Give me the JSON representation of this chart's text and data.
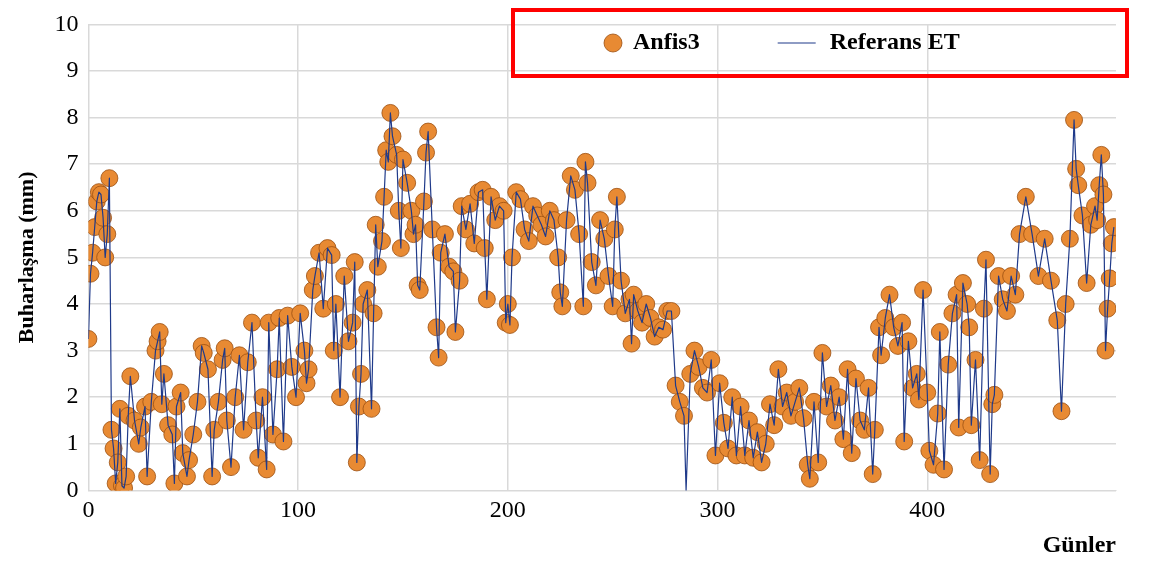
{
  "chart_data": {
    "type": "scatter",
    "ylabel": "Buharlaşma (mm)",
    "xlabel": "Günler",
    "x": [
      0,
      1,
      2,
      3,
      4,
      5,
      6,
      7,
      8,
      9,
      10,
      11,
      12,
      13,
      14,
      15,
      16,
      17,
      18,
      19,
      20,
      22,
      24,
      25,
      27,
      28,
      30,
      32,
      33,
      34,
      35,
      36,
      38,
      40,
      41,
      42,
      44,
      45,
      47,
      48,
      50,
      52,
      54,
      55,
      57,
      59,
      60,
      62,
      64,
      65,
      66,
      68,
      70,
      72,
      74,
      76,
      78,
      80,
      81,
      83,
      85,
      86,
      88,
      90,
      91,
      93,
      95,
      97,
      99,
      101,
      103,
      104,
      105,
      107,
      108,
      110,
      112,
      114,
      116,
      117,
      118,
      120,
      122,
      124,
      126,
      127,
      128,
      129,
      130,
      131,
      133,
      135,
      136,
      137,
      138,
      140,
      141,
      142,
      143,
      144,
      145,
      147,
      148,
      149,
      150,
      152,
      154,
      155,
      156,
      157,
      158,
      160,
      161,
      162,
      164,
      166,
      167,
      168,
      170,
      172,
      174,
      175,
      177,
      178,
      180,
      182,
      184,
      186,
      188,
      189,
      190,
      192,
      194,
      196,
      198,
      199,
      200,
      201,
      202,
      204,
      206,
      208,
      210,
      212,
      214,
      216,
      218,
      220,
      222,
      224,
      225,
      226,
      228,
      230,
      232,
      234,
      236,
      237,
      238,
      240,
      242,
      244,
      246,
      248,
      250,
      251,
      252,
      254,
      256,
      258,
      259,
      260,
      262,
      264,
      266,
      268,
      270,
      272,
      274,
      276,
      278,
      280,
      282,
      284,
      285,
      287,
      289,
      291,
      293,
      295,
      297,
      299,
      301,
      303,
      305,
      307,
      309,
      311,
      313,
      315,
      317,
      319,
      321,
      323,
      325,
      327,
      329,
      331,
      333,
      335,
      337,
      339,
      341,
      343,
      344,
      346,
      348,
      350,
      352,
      354,
      356,
      358,
      360,
      362,
      364,
      366,
      368,
      370,
      372,
      374,
      375,
      377,
      378,
      380,
      382,
      384,
      386,
      388,
      389,
      391,
      393,
      395,
      396,
      398,
      400,
      401,
      403,
      405,
      406,
      408,
      410,
      412,
      414,
      415,
      417,
      419,
      420,
      421,
      423,
      425,
      427,
      428,
      430,
      431,
      432,
      434,
      436,
      438,
      440,
      442,
      444,
      447,
      450,
      453,
      456,
      459,
      462,
      464,
      466,
      468,
      470,
      471,
      472,
      474,
      476,
      478,
      480,
      481,
      482,
      483,
      484,
      485,
      486,
      487,
      488,
      489
    ],
    "series": [
      {
        "name": "Anfis3",
        "marker": "circle",
        "color": "#e88a33",
        "values": [
          3.25,
          4.65,
          5.1,
          5.65,
          6.2,
          6.4,
          6.35,
          5.85,
          5.0,
          5.5,
          6.7,
          1.3,
          0.9,
          0.15,
          0.6,
          1.75,
          0.1,
          0.05,
          0.3,
          1.6,
          2.45,
          1.5,
          1.0,
          1.35,
          1.8,
          0.3,
          1.9,
          3.0,
          3.2,
          3.4,
          1.85,
          2.5,
          1.4,
          1.2,
          0.15,
          1.8,
          2.1,
          0.8,
          0.3,
          0.65,
          1.2,
          1.9,
          3.1,
          2.95,
          2.6,
          0.3,
          1.3,
          1.9,
          2.8,
          3.05,
          1.5,
          0.5,
          2.0,
          2.9,
          1.3,
          2.75,
          3.6,
          1.5,
          0.7,
          2.0,
          0.45,
          3.6,
          1.2,
          2.6,
          3.7,
          1.05,
          3.75,
          2.65,
          2.0,
          3.8,
          3.0,
          2.3,
          2.6,
          4.3,
          4.6,
          5.1,
          3.9,
          5.2,
          5.05,
          3.0,
          4.0,
          2.0,
          4.6,
          3.2,
          3.6,
          4.9,
          0.6,
          1.8,
          2.5,
          4.0,
          4.3,
          1.75,
          3.8,
          5.7,
          4.8,
          5.35,
          6.3,
          7.3,
          7.05,
          8.1,
          7.6,
          7.2,
          6.0,
          5.2,
          7.1,
          6.6,
          6.0,
          5.5,
          5.7,
          4.4,
          4.3,
          6.2,
          7.25,
          7.7,
          5.6,
          3.5,
          2.85,
          5.1,
          5.5,
          4.8,
          4.7,
          3.4,
          4.5,
          6.1,
          5.6,
          6.15,
          5.3,
          6.4,
          6.45,
          5.2,
          4.1,
          6.3,
          5.8,
          6.1,
          6.0,
          3.6,
          4.0,
          3.55,
          5.0,
          6.4,
          6.25,
          5.6,
          5.35,
          6.1,
          5.9,
          5.7,
          5.45,
          6.0,
          5.8,
          5.0,
          4.25,
          3.95,
          5.8,
          6.75,
          6.45,
          5.5,
          3.95,
          7.05,
          6.6,
          4.9,
          4.4,
          5.8,
          5.4,
          4.6,
          3.95,
          5.6,
          6.3,
          4.5,
          3.8,
          4.1,
          3.15,
          4.2,
          3.85,
          3.6,
          4.0,
          3.7,
          3.3,
          3.5,
          3.45,
          3.85,
          3.85,
          2.25,
          1.9,
          1.6,
          null,
          2.5,
          3.0,
          2.65,
          2.2,
          2.1,
          2.8,
          0.75,
          2.3,
          1.45,
          0.9,
          2.0,
          0.75,
          1.8,
          0.75,
          1.5,
          0.7,
          1.25,
          0.6,
          1.0,
          1.85,
          1.4,
          2.6,
          1.8,
          2.1,
          1.6,
          1.9,
          2.2,
          1.55,
          0.55,
          0.25,
          1.9,
          0.6,
          2.95,
          1.8,
          2.25,
          1.5,
          2.0,
          1.1,
          2.6,
          0.8,
          2.4,
          1.5,
          1.3,
          2.2,
          0.35,
          1.3,
          3.5,
          2.9,
          3.7,
          4.2,
          3.5,
          3.1,
          3.6,
          1.05,
          3.2,
          2.2,
          2.5,
          1.95,
          4.3,
          2.1,
          0.85,
          0.55,
          1.65,
          3.4,
          0.45,
          2.7,
          3.8,
          4.2,
          1.35,
          4.45,
          4.0,
          3.5,
          1.4,
          2.8,
          0.65,
          3.9,
          4.95,
          0.35,
          1.85,
          2.05,
          4.6,
          4.1,
          3.85,
          4.6,
          4.2,
          5.5,
          6.3,
          5.5,
          4.6,
          5.4,
          4.5,
          3.65,
          1.7,
          4.0,
          5.4,
          7.95,
          6.9,
          6.55,
          5.9,
          4.45,
          5.7,
          6.1,
          5.8,
          6.55,
          7.2,
          6.35,
          3.0,
          3.9,
          4.55,
          5.3,
          5.65
        ]
      },
      {
        "name": "Referans ET",
        "type": "line",
        "marker": "none",
        "color": "#1f3a8a",
        "values": [
          3.25,
          4.65,
          5.1,
          5.65,
          6.2,
          6.4,
          6.35,
          5.85,
          5.0,
          5.5,
          6.7,
          1.3,
          0.9,
          0.15,
          0.6,
          1.75,
          0.1,
          0.05,
          0.3,
          1.6,
          2.45,
          1.5,
          1.0,
          1.35,
          1.8,
          0.3,
          1.9,
          3.0,
          3.2,
          3.4,
          1.85,
          2.5,
          1.4,
          1.2,
          0.15,
          1.8,
          2.1,
          0.8,
          0.3,
          0.65,
          1.2,
          1.9,
          3.1,
          2.95,
          2.6,
          0.3,
          1.3,
          1.9,
          2.8,
          3.05,
          1.5,
          0.5,
          2.0,
          2.9,
          1.3,
          2.75,
          3.6,
          1.5,
          0.7,
          2.0,
          0.45,
          3.6,
          1.2,
          2.6,
          3.7,
          1.05,
          3.75,
          2.65,
          2.0,
          3.8,
          3.0,
          2.3,
          2.6,
          4.3,
          4.6,
          5.1,
          3.9,
          5.2,
          5.05,
          3.0,
          4.0,
          2.0,
          4.6,
          3.2,
          3.6,
          4.9,
          0.6,
          1.8,
          2.5,
          4.0,
          4.3,
          1.75,
          3.8,
          5.7,
          4.8,
          5.35,
          6.3,
          7.3,
          7.05,
          8.1,
          7.6,
          7.2,
          6.0,
          5.2,
          7.1,
          6.6,
          6.0,
          5.5,
          5.7,
          4.4,
          4.3,
          6.2,
          7.25,
          7.7,
          5.6,
          3.5,
          2.85,
          5.1,
          5.5,
          4.8,
          4.7,
          3.4,
          4.5,
          6.1,
          5.6,
          6.15,
          5.3,
          6.4,
          6.45,
          5.2,
          4.1,
          6.3,
          5.8,
          6.1,
          6.0,
          3.6,
          4.0,
          3.55,
          5.0,
          6.4,
          6.25,
          5.6,
          5.35,
          6.1,
          5.9,
          5.7,
          5.45,
          6.0,
          5.8,
          5.0,
          4.25,
          3.95,
          5.8,
          6.75,
          6.45,
          5.5,
          3.95,
          7.05,
          6.6,
          4.9,
          4.4,
          5.8,
          5.4,
          4.6,
          3.95,
          5.6,
          6.3,
          4.5,
          3.8,
          4.1,
          3.15,
          4.2,
          3.85,
          3.6,
          4.0,
          3.7,
          3.3,
          3.5,
          3.45,
          3.85,
          3.85,
          2.25,
          1.9,
          1.6,
          0,
          2.5,
          3.0,
          2.65,
          2.2,
          2.1,
          2.8,
          0.75,
          2.3,
          1.45,
          0.9,
          2.0,
          0.75,
          1.8,
          0.75,
          1.5,
          0.7,
          1.25,
          0.6,
          1.0,
          1.85,
          1.4,
          2.6,
          1.8,
          2.1,
          1.6,
          1.9,
          2.2,
          1.55,
          0.55,
          0.25,
          1.9,
          0.6,
          2.95,
          1.8,
          2.25,
          1.5,
          2.0,
          1.1,
          2.6,
          0.8,
          2.4,
          1.5,
          1.3,
          2.2,
          0.35,
          1.3,
          3.5,
          2.9,
          3.7,
          4.2,
          3.5,
          3.1,
          3.6,
          1.05,
          3.2,
          2.2,
          2.5,
          1.95,
          4.3,
          2.1,
          0.85,
          0.55,
          1.65,
          3.4,
          0.45,
          2.7,
          3.8,
          4.2,
          1.35,
          4.45,
          4.0,
          3.5,
          1.4,
          2.8,
          0.65,
          3.9,
          4.95,
          0.35,
          1.85,
          2.05,
          4.6,
          4.1,
          3.85,
          4.6,
          4.2,
          5.5,
          6.3,
          5.5,
          4.6,
          5.4,
          4.5,
          3.65,
          1.7,
          4.0,
          5.4,
          7.95,
          6.9,
          6.55,
          5.9,
          4.45,
          5.7,
          6.1,
          5.8,
          6.55,
          7.2,
          6.35,
          3.0,
          3.9,
          4.55,
          5.3,
          5.65
        ]
      }
    ],
    "xlim": [
      0,
      490
    ],
    "xticks": [
      0,
      100,
      200,
      300,
      400
    ],
    "ylim": [
      0,
      10
    ],
    "yticks": [
      0,
      1,
      2,
      3,
      4,
      5,
      6,
      7,
      8,
      9,
      10
    ],
    "grid": true,
    "legend": "top right",
    "line_style": "solid"
  }
}
